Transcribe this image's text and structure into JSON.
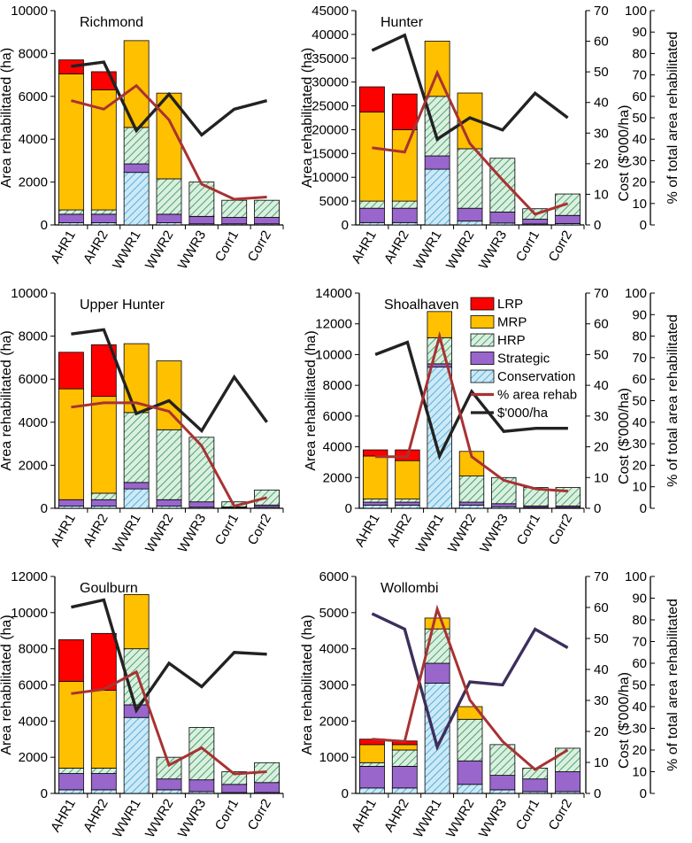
{
  "categories": [
    "AHR1",
    "AHR2",
    "WWR1",
    "WWR2",
    "WWR3",
    "Corr1",
    "Corr2"
  ],
  "labels": {
    "y_left": "Area rehabilitated (ha)",
    "y_cost": "Cost ($'000/ha)",
    "y_pct": "% of total area rehabilitated"
  },
  "legend": [
    {
      "key": "LRP",
      "label": "LRP"
    },
    {
      "key": "MRP",
      "label": "MRP"
    },
    {
      "key": "HRP",
      "label": "HRP"
    },
    {
      "key": "Strategic",
      "label": "Strategic"
    },
    {
      "key": "Conservation",
      "label": "Conservation"
    },
    {
      "key": "pct",
      "label": "% area rehab"
    },
    {
      "key": "cost",
      "label": "$'000/ha"
    }
  ],
  "colors": {
    "LRP": "#ff0000",
    "MRP": "#ffc000",
    "HRP": "#d9f0df",
    "HRP_hatch": "#2e8b57",
    "Strategic": "#9966cc",
    "Conservation": "#cce9f7",
    "Conservation_hatch": "#3a9fd0",
    "pct": "#a83232",
    "cost": "#222222",
    "cost_wollombi": "#3d2f5c"
  },
  "chart_data": [
    {
      "type": "bar",
      "title": "Richmond",
      "ylim": [
        0,
        10000
      ],
      "ytick_step": 2000,
      "right_axes": false,
      "series": [
        {
          "name": "Conservation",
          "values": [
            100,
            100,
            2450,
            100,
            50,
            50,
            50
          ]
        },
        {
          "name": "Strategic",
          "values": [
            400,
            400,
            400,
            400,
            350,
            300,
            300
          ]
        },
        {
          "name": "HRP",
          "values": [
            200,
            200,
            1700,
            1650,
            1600,
            800,
            800
          ]
        },
        {
          "name": "MRP",
          "values": [
            6350,
            5600,
            4050,
            4000,
            0,
            0,
            0
          ]
        },
        {
          "name": "LRP",
          "values": [
            650,
            850,
            0,
            0,
            0,
            0,
            0
          ]
        }
      ],
      "pct": [
        58,
        54,
        65,
        49,
        19,
        12,
        13
      ],
      "cost": [
        7400,
        7600,
        4400,
        6100,
        4200,
        5400,
        5800
      ]
    },
    {
      "type": "bar",
      "title": "Hunter",
      "ylim": [
        0,
        45000
      ],
      "ytick_step": 5000,
      "right_axes": true,
      "cost_ylim": [
        0,
        70
      ],
      "cost_step": 10,
      "series": [
        {
          "name": "Conservation",
          "values": [
            500,
            500,
            11700,
            800,
            400,
            200,
            300
          ]
        },
        {
          "name": "Strategic",
          "values": [
            3000,
            3000,
            2800,
            2700,
            2300,
            1000,
            1700
          ]
        },
        {
          "name": "HRP",
          "values": [
            1500,
            1500,
            12500,
            12500,
            11300,
            2200,
            4500
          ]
        },
        {
          "name": "MRP",
          "values": [
            18700,
            15000,
            11600,
            11700,
            0,
            0,
            0
          ]
        },
        {
          "name": "LRP",
          "values": [
            5300,
            7500,
            0,
            0,
            0,
            0,
            0
          ]
        }
      ],
      "pct": [
        36,
        34,
        71,
        38,
        21,
        5,
        10
      ],
      "cost": [
        57,
        62,
        28,
        35,
        31,
        43,
        35
      ]
    },
    {
      "type": "bar",
      "title": "Upper Hunter",
      "ylim": [
        0,
        10000
      ],
      "ytick_step": 2000,
      "right_axes": false,
      "series": [
        {
          "name": "Conservation",
          "values": [
            100,
            100,
            900,
            100,
            50,
            30,
            50
          ]
        },
        {
          "name": "Strategic",
          "values": [
            300,
            300,
            300,
            300,
            250,
            30,
            100
          ]
        },
        {
          "name": "HRP",
          "values": [
            0,
            300,
            3250,
            3250,
            3000,
            240,
            700
          ]
        },
        {
          "name": "MRP",
          "values": [
            5150,
            4500,
            3200,
            3200,
            0,
            0,
            0
          ]
        },
        {
          "name": "LRP",
          "values": [
            1700,
            2400,
            0,
            0,
            0,
            0,
            0
          ]
        }
      ],
      "pct": [
        47,
        49,
        49,
        45,
        29,
        1,
        5
      ],
      "cost": [
        8100,
        8300,
        4400,
        5000,
        3600,
        6100,
        4000
      ]
    },
    {
      "type": "bar",
      "title": "Shoalhaven",
      "ylim": [
        0,
        14000
      ],
      "ytick_step": 2000,
      "right_axes": true,
      "cost_ylim": [
        0,
        70
      ],
      "cost_step": 10,
      "series": [
        {
          "name": "Conservation",
          "values": [
            200,
            200,
            9200,
            200,
            100,
            50,
            50
          ]
        },
        {
          "name": "Strategic",
          "values": [
            200,
            200,
            200,
            200,
            200,
            100,
            100
          ]
        },
        {
          "name": "HRP",
          "values": [
            200,
            200,
            1700,
            1700,
            1700,
            1200,
            1200
          ]
        },
        {
          "name": "MRP",
          "values": [
            2800,
            2500,
            1700,
            1600,
            0,
            0,
            0
          ]
        },
        {
          "name": "LRP",
          "values": [
            400,
            700,
            0,
            0,
            0,
            0,
            0
          ]
        }
      ],
      "pct": [
        24,
        24,
        80,
        24,
        13,
        9,
        8
      ],
      "cost": [
        50,
        54,
        17,
        38,
        25,
        26,
        26
      ]
    },
    {
      "type": "bar",
      "title": "Goulburn",
      "ylim": [
        0,
        12000
      ],
      "ytick_step": 2000,
      "right_axes": false,
      "series": [
        {
          "name": "Conservation",
          "values": [
            200,
            200,
            4200,
            200,
            100,
            50,
            50
          ]
        },
        {
          "name": "Strategic",
          "values": [
            900,
            900,
            700,
            600,
            650,
            450,
            550
          ]
        },
        {
          "name": "HRP",
          "values": [
            300,
            300,
            3100,
            1200,
            2900,
            700,
            1100
          ]
        },
        {
          "name": "MRP",
          "values": [
            4800,
            4300,
            3000,
            0,
            0,
            0,
            0
          ]
        },
        {
          "name": "LRP",
          "values": [
            2300,
            3150,
            0,
            0,
            0,
            0,
            0
          ]
        }
      ],
      "pct": [
        46,
        48,
        56,
        13,
        21,
        9,
        10
      ],
      "cost": [
        10300,
        10700,
        4600,
        7200,
        5900,
        7800,
        7700
      ]
    },
    {
      "type": "bar",
      "title": "Wollombi",
      "ylim": [
        0,
        6000
      ],
      "ytick_step": 1000,
      "right_axes": true,
      "cost_ylim": [
        0,
        70
      ],
      "cost_step": 10,
      "series": [
        {
          "name": "Conservation",
          "values": [
            150,
            150,
            3050,
            250,
            100,
            50,
            50
          ]
        },
        {
          "name": "Strategic",
          "values": [
            600,
            600,
            550,
            650,
            400,
            350,
            550
          ]
        },
        {
          "name": "HRP",
          "values": [
            100,
            450,
            950,
            1150,
            850,
            300,
            650
          ]
        },
        {
          "name": "MRP",
          "values": [
            500,
            150,
            300,
            350,
            0,
            0,
            0
          ]
        },
        {
          "name": "LRP",
          "values": [
            150,
            100,
            0,
            0,
            0,
            0,
            0
          ]
        }
      ],
      "pct": [
        25,
        24,
        85,
        43,
        24,
        11,
        20
      ],
      "cost": [
        58,
        53,
        15,
        36,
        35,
        53,
        47
      ]
    }
  ]
}
